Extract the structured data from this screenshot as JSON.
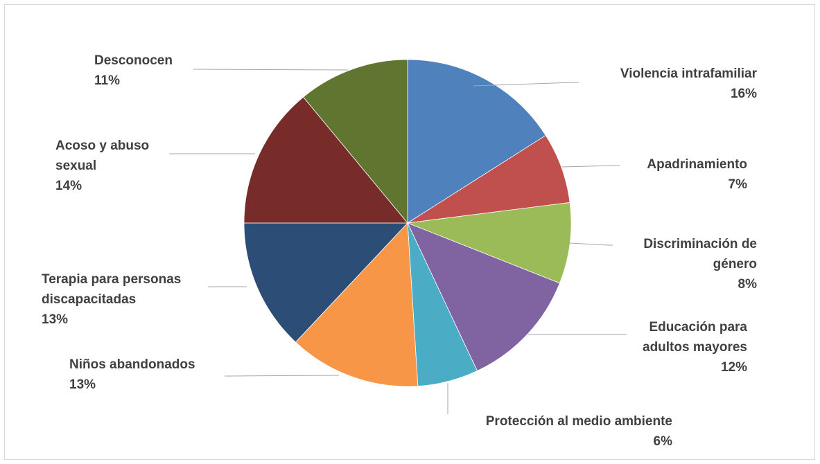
{
  "chart_data": {
    "type": "pie",
    "title": "",
    "start_angle_deg": 0,
    "direction": "clockwise",
    "legend": "none",
    "slices": [
      {
        "label": "Violencia intrafamiliar",
        "value": 16,
        "display": "16%",
        "color": "#4f81bd"
      },
      {
        "label": "Apadrinamiento",
        "value": 7,
        "display": "7%",
        "color": "#c0504d"
      },
      {
        "label": "Discriminación de género",
        "value": 8,
        "display": "8%",
        "color": "#9bbb59"
      },
      {
        "label": "Educación para adultos mayores",
        "value": 12,
        "display": "12%",
        "color": "#8064a2"
      },
      {
        "label": "Protección al medio ambiente",
        "value": 6,
        "display": "6%",
        "color": "#4bacc6"
      },
      {
        "label": "Niños abandonados",
        "value": 13,
        "display": "13%",
        "color": "#f79646"
      },
      {
        "label": "Terapia para personas discapacitadas",
        "value": 13,
        "display": "13%",
        "color": "#2c4d75"
      },
      {
        "label": "Acoso y abuso sexual",
        "value": 14,
        "display": "14%",
        "color": "#772c2a"
      },
      {
        "label": "Desconocen",
        "value": 11,
        "display": "11%",
        "color": "#5f7530"
      }
    ]
  }
}
